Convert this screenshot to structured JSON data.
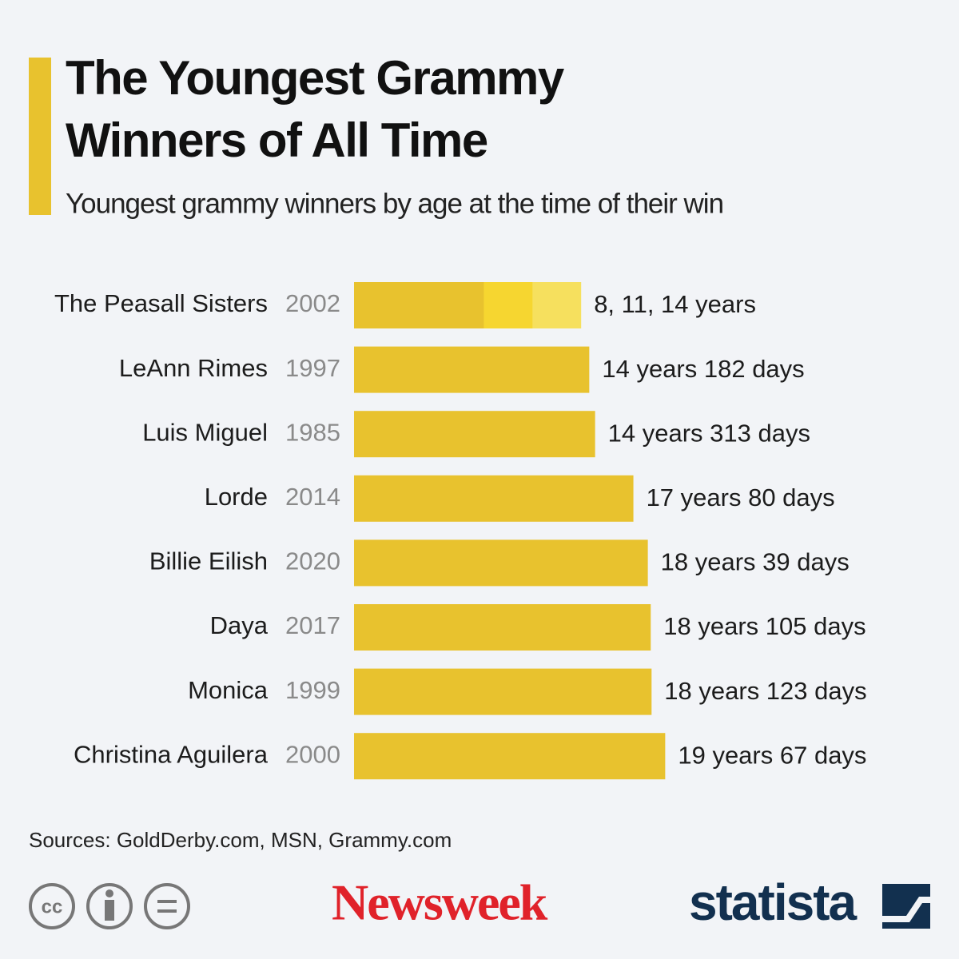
{
  "chart_data": {
    "type": "bar",
    "title": [
      "The Youngest Grammy",
      "Winners of All Time"
    ],
    "subtitle": "Youngest grammy winners by age at the time of their win",
    "categories": [
      "The Peasall Sisters",
      "LeAnn Rimes",
      "Luis Miguel",
      "Lorde",
      "Billie Eilish",
      "Daya",
      "Monica",
      "Christina Aguilera"
    ],
    "years": [
      "2002",
      "1997",
      "1985",
      "2014",
      "2020",
      "2017",
      "1999",
      "2000"
    ],
    "values": [
      [
        8,
        11,
        14
      ],
      14.5,
      14.86,
      17.22,
      18.11,
      18.29,
      18.34,
      19.18
    ],
    "value_labels": [
      "8, 11, 14 years",
      "14 years 182 days",
      "14 years 313 days",
      "17 years 80 days",
      "18 years 39 days",
      "18 years 105 days",
      "18 years 123 days",
      "19 years 67 days"
    ],
    "color": "#e8c22e",
    "group_colors": [
      "#e8c22e",
      "#f6d630",
      "#f6e05e"
    ],
    "source": "Sources: GoldDerby.com, MSN, Grammy.com"
  },
  "footer": {
    "license": "cc",
    "brands": [
      "Newsweek",
      "statista"
    ]
  }
}
